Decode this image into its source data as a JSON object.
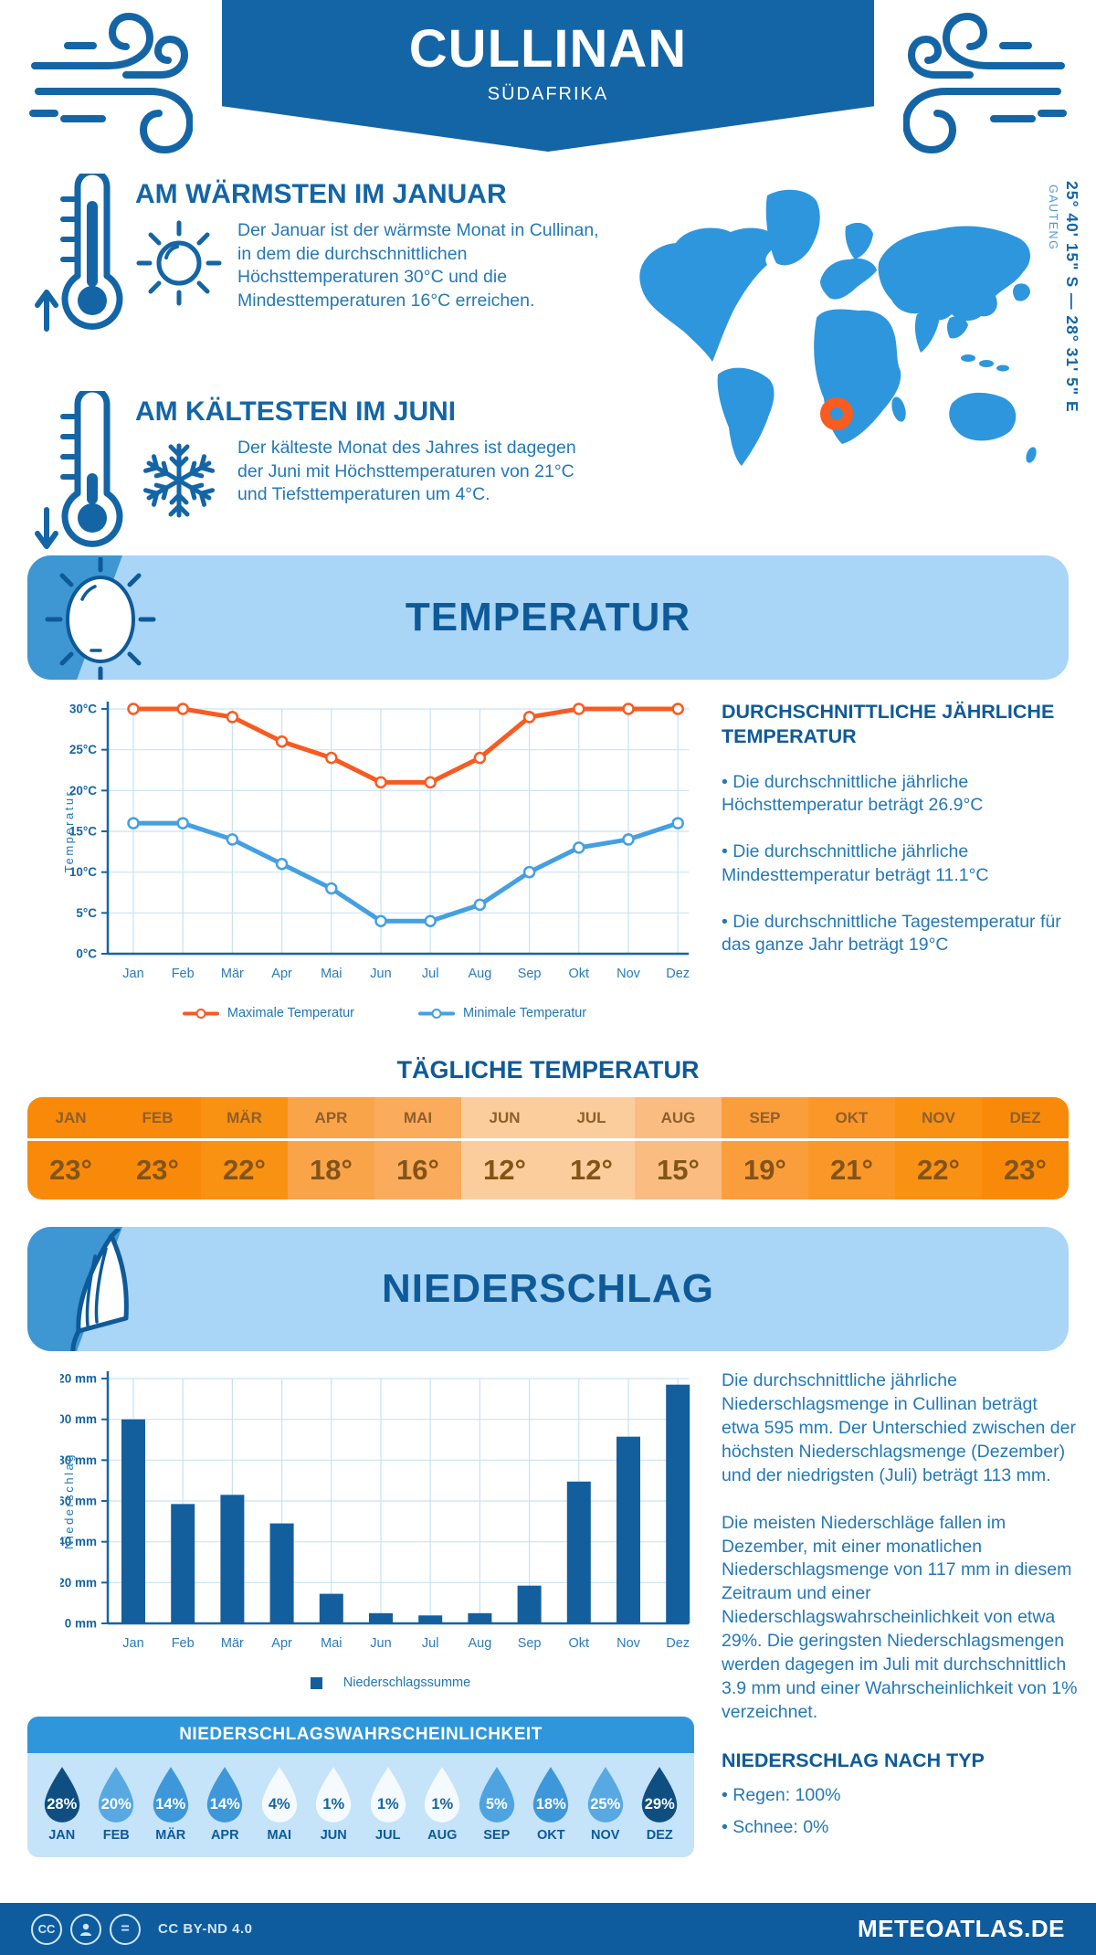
{
  "header": {
    "title": "CULLINAN",
    "subtitle": "SÜDAFRIKA"
  },
  "location": {
    "coordinates": "25° 40' 15\" S — 28° 31' 5\" E",
    "region": "GAUTENG"
  },
  "highlights": {
    "warmest": {
      "heading": "AM WÄRMSTEN IM JANUAR",
      "text": "Der Januar ist der wärmste Monat in Cullinan, in dem die durchschnittlichen Höchsttemperaturen 30°C und die Mindesttemperaturen 16°C erreichen."
    },
    "coldest": {
      "heading": "AM KÄLTESTEN IM JUNI",
      "text": "Der kälteste Monat des Jahres ist dagegen der Juni mit Höchsttemperaturen von 21°C und Tiefsttemperaturen um 4°C."
    }
  },
  "temperature_section": {
    "title": "TEMPERATUR",
    "annual_heading": "DURCHSCHNITTLICHE JÄHRLICHE TEMPERATUR",
    "bullets": [
      "• Die durchschnittliche jährliche Höchsttemperatur beträgt 26.9°C",
      "• Die durchschnittliche jährliche Mindesttemperatur beträgt 11.1°C",
      "• Die durchschnittliche Tagestemperatur für das ganze Jahr beträgt 19°C"
    ],
    "daily_title": "TÄGLICHE TEMPERATUR"
  },
  "daily_temperature": {
    "months": [
      "JAN",
      "FEB",
      "MÄR",
      "APR",
      "MAI",
      "JUN",
      "JUL",
      "AUG",
      "SEP",
      "OKT",
      "NOV",
      "DEZ"
    ],
    "values": [
      "23°",
      "23°",
      "22°",
      "18°",
      "16°",
      "12°",
      "12°",
      "15°",
      "19°",
      "21°",
      "22°",
      "23°"
    ],
    "cell_colors": [
      "#F98A09",
      "#F98A09",
      "#F99113",
      "#FAA44A",
      "#FAAC5C",
      "#FBCD9C",
      "#FBCD9C",
      "#FBBC82",
      "#FA9E3C",
      "#FA9728",
      "#F99113",
      "#F98A09"
    ]
  },
  "precipitation_section": {
    "title": "NIEDERSCHLAG",
    "paragraphs": [
      "Die durchschnittliche jährliche Niederschlagsmenge in Cullinan beträgt etwa 595 mm. Der Unterschied zwischen der höchsten Niederschlagsmenge (Dezember) und der niedrigsten (Juli) beträgt 113 mm.",
      "Die meisten Niederschläge fallen im Dezember, mit einer monatlichen Niederschlagsmenge von 117 mm in diesem Zeitraum und einer Niederschlagswahrscheinlichkeit von etwa 29%. Die geringsten Niederschlagsmengen werden dagegen im Juli mit durchschnittlich 3.9 mm und einer Wahrscheinlichkeit von 1% verzeichnet."
    ],
    "type_heading": "NIEDERSCHLAG NACH TYP",
    "type_bullets": [
      "• Regen: 100%",
      "• Schnee: 0%"
    ]
  },
  "precip_probability": {
    "title": "NIEDERSCHLAGSWAHRSCHEINLICHKEIT",
    "months": [
      "JAN",
      "FEB",
      "MÄR",
      "APR",
      "MAI",
      "JUN",
      "JUL",
      "AUG",
      "SEP",
      "OKT",
      "NOV",
      "DEZ"
    ],
    "values": [
      "28%",
      "20%",
      "14%",
      "14%",
      "4%",
      "1%",
      "1%",
      "1%",
      "5%",
      "18%",
      "25%",
      "29%"
    ],
    "drop_colors": [
      "#0F4E81",
      "#58A9E2",
      "#3E97D8",
      "#3E97D8",
      "#F5FAFE",
      "#F5FAFE",
      "#F5FAFE",
      "#F5FAFE",
      "#4FA4E0",
      "#3E97D8",
      "#58A9E2",
      "#0F4E81"
    ],
    "drop_text_colors": [
      "#FFFFFF",
      "#FFFFFF",
      "#FFFFFF",
      "#FFFFFF",
      "#1465A6",
      "#1465A6",
      "#1465A6",
      "#1465A6",
      "#FFFFFF",
      "#FFFFFF",
      "#FFFFFF",
      "#FFFFFF"
    ]
  },
  "chart_data": [
    {
      "type": "line",
      "name": "temperature-line-chart",
      "categories": [
        "Jan",
        "Feb",
        "Mär",
        "Apr",
        "Mai",
        "Jun",
        "Jul",
        "Aug",
        "Sep",
        "Okt",
        "Nov",
        "Dez"
      ],
      "series": [
        {
          "name": "Maximale Temperatur",
          "color": "#F75B22",
          "values": [
            30,
            30,
            29,
            26,
            24,
            21,
            21,
            24,
            29,
            30,
            30,
            30
          ]
        },
        {
          "name": "Minimale Temperatur",
          "color": "#44A0E0",
          "values": [
            16,
            16,
            14,
            11,
            8,
            4,
            4,
            6,
            10,
            13,
            14,
            16
          ]
        }
      ],
      "xlabel": "",
      "ylabel": "Temperatur",
      "ylim": [
        0,
        30
      ],
      "ytick_step": 5,
      "ytick_suffix": "°C",
      "grid": true,
      "legend_position": "bottom"
    },
    {
      "type": "bar",
      "name": "precipitation-bar-chart",
      "categories": [
        "Jan",
        "Feb",
        "Mär",
        "Apr",
        "Mai",
        "Jun",
        "Jul",
        "Aug",
        "Sep",
        "Okt",
        "Nov",
        "Dez"
      ],
      "series": [
        {
          "name": "Niederschlagssumme",
          "color": "#135F9E",
          "values": [
            100,
            58.5,
            63,
            49,
            14.5,
            5,
            3.9,
            5,
            18.5,
            69.5,
            91.5,
            117
          ]
        }
      ],
      "xlabel": "",
      "ylabel": "Niederschlag",
      "ylim": [
        0,
        120
      ],
      "ytick_step": 20,
      "ytick_suffix": " mm",
      "grid": true,
      "legend_position": "bottom"
    }
  ],
  "icons": {
    "wind": "wind-swirl",
    "thermometer_high": "thermometer-up",
    "thermometer_low": "thermometer-down",
    "sun": "sun",
    "snowflake": "snowflake",
    "umbrella": "umbrella-closed",
    "marker": "orange-ring"
  },
  "colors": {
    "accent_blue": "#1465A6",
    "body_blue": "#2478B6",
    "banner_light": "#A9D5F7",
    "banner_dark": "#3E96D2",
    "map_blue": "#2E96DD",
    "marker_orange": "#F95C1F",
    "footer_blue": "#0E5C9E"
  },
  "footer": {
    "license": "CC BY-ND 4.0",
    "site": "METEOATLAS.DE"
  }
}
